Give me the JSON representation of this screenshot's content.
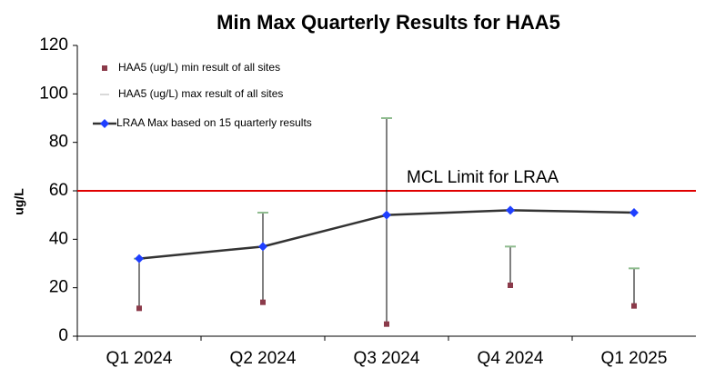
{
  "chart_data": {
    "type": "hilo_line",
    "title": "Min Max Quarterly Results for HAA5",
    "y_label": "ug/L",
    "categories": [
      "Q1 2024",
      "Q2 2024",
      "Q3 2024",
      "Q4 2024",
      "Q1 2025"
    ],
    "series": [
      {
        "name": "HAA5 (ug/L) min result of all sites",
        "color": "#8b3a4a",
        "values": [
          11.5,
          14,
          5,
          21,
          12.5
        ]
      },
      {
        "name": "HAA5 (ug/L) max result of all sites",
        "color": "#8fbc8f",
        "values": [
          32,
          51,
          90,
          37,
          28
        ]
      },
      {
        "name": "LRAA Max based on 15 quarterly results",
        "color": "#1f3fff",
        "line_color": "#333333",
        "values": [
          32,
          37,
          50,
          52,
          51
        ]
      }
    ],
    "reference_line": {
      "value": 60,
      "label": "MCL Limit for LRAA",
      "color": "#e00000"
    },
    "ylim": [
      0,
      120
    ],
    "yticks": [
      0,
      20,
      40,
      60,
      80,
      100,
      120
    ],
    "legend": "top-left"
  }
}
